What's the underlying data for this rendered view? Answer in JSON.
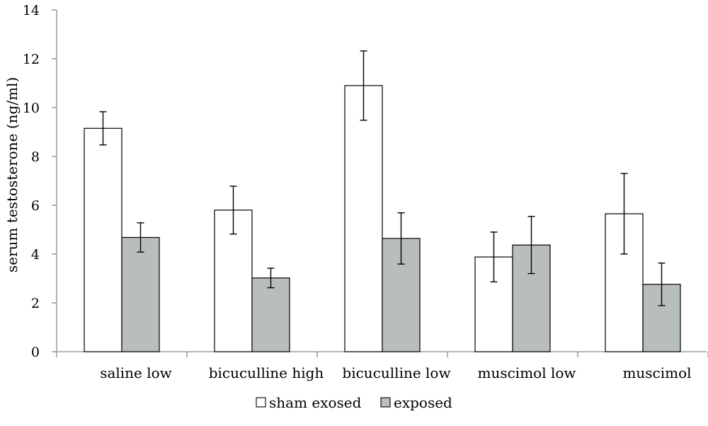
{
  "chart_data": {
    "type": "bar",
    "title": "",
    "xlabel": "",
    "ylabel": "serum testosterone (ng/ml)",
    "ylim": [
      0,
      14
    ],
    "yticks": [
      0,
      2,
      4,
      6,
      8,
      10,
      12,
      14
    ],
    "grid": false,
    "legend_position": "bottom",
    "categories": [
      "saline low",
      "bicuculline high",
      "bicuculline low",
      "muscimol low",
      "muscimol"
    ],
    "series": [
      {
        "name": "sham exosed",
        "color": "#ffffff",
        "values": [
          9.15,
          5.8,
          10.9,
          3.88,
          5.65
        ],
        "errors": [
          0.68,
          0.98,
          1.42,
          1.02,
          1.65
        ]
      },
      {
        "name": "exposed",
        "color": "#b8bfbb",
        "values": [
          4.68,
          3.02,
          4.64,
          4.37,
          2.76
        ],
        "errors": [
          0.6,
          0.4,
          1.05,
          1.17,
          0.87
        ]
      }
    ]
  }
}
